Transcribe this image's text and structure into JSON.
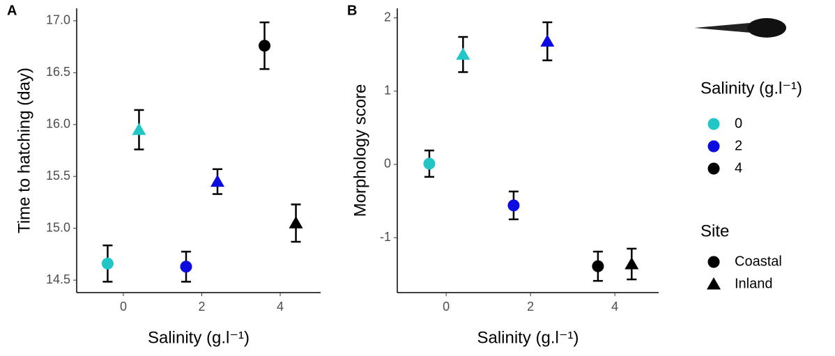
{
  "chart_data": [
    {
      "type": "scatter",
      "panel_label": "A",
      "y_label": "Time to hatching (day)",
      "x_label": "Salinity (g.l⁻¹)",
      "xlim": [
        -1.19,
        5.03
      ],
      "xticks": [
        0,
        2,
        4
      ],
      "ylim": [
        14.38,
        17.12
      ],
      "yticks": [
        14.5,
        {
          "value": 15,
          "label": "15.0"
        },
        15.5,
        {
          "value": 16,
          "label": "16.0"
        },
        16.5,
        {
          "value": 17,
          "label": "17.0"
        }
      ],
      "series": [
        {
          "name": "Coastal",
          "marker": "circle",
          "x": [
            0,
            2,
            4
          ],
          "values": [
            14.66,
            14.63,
            16.76
          ],
          "errors": [
            0.175,
            0.145,
            0.225
          ]
        },
        {
          "name": "Inland",
          "marker": "triangle",
          "x": [
            0,
            2,
            4
          ],
          "values": [
            15.95,
            15.45,
            15.05
          ],
          "errors": [
            0.19,
            0.12,
            0.18
          ]
        }
      ]
    },
    {
      "type": "scatter",
      "panel_label": "B",
      "y_label": "Morphology score",
      "x_label": "Salinity (g.l⁻¹)",
      "xlim": [
        -1.16,
        5.04
      ],
      "xticks": [
        0,
        2,
        4
      ],
      "ylim": [
        -1.75,
        2.13
      ],
      "yticks": [
        -1,
        0,
        1,
        2
      ],
      "series": [
        {
          "name": "Coastal",
          "marker": "circle",
          "x": [
            0,
            2,
            4
          ],
          "values": [
            0.01,
            -0.56,
            -1.39
          ],
          "errors": [
            0.18,
            0.19,
            0.2
          ]
        },
        {
          "name": "Inland",
          "marker": "triangle",
          "x": [
            0,
            2,
            4
          ],
          "values": [
            1.5,
            1.68,
            -1.36
          ],
          "errors": [
            0.24,
            0.26,
            0.21
          ]
        }
      ]
    }
  ],
  "legend": {
    "color_title": "Salinity (g.l⁻¹)",
    "colors": [
      {
        "label": "0",
        "color": "#22c6c6"
      },
      {
        "label": "2",
        "color": "#0c0ce0"
      },
      {
        "label": "4",
        "color": "#000000"
      }
    ],
    "shape_title": "Site"
  }
}
